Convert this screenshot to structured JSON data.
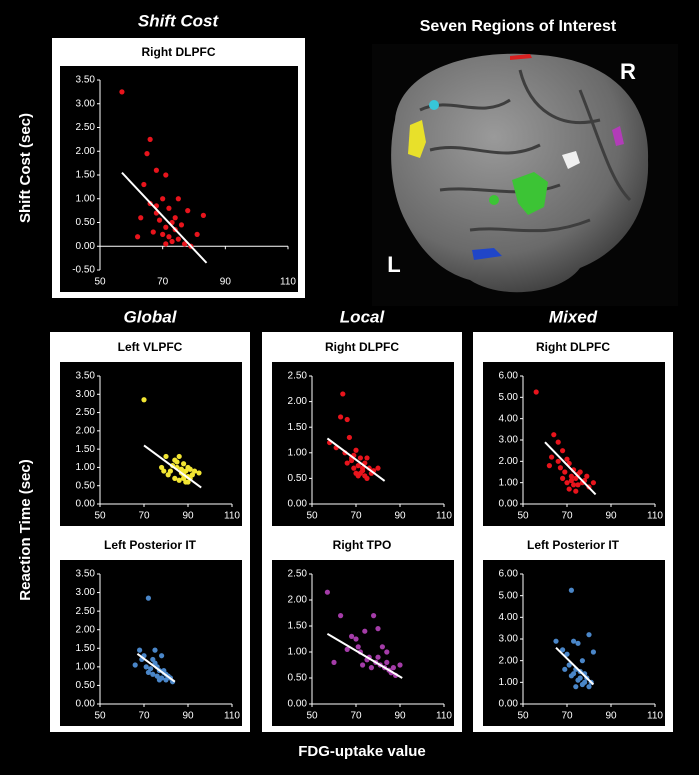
{
  "panel_titles": [
    "Shift Cost",
    "Global",
    "Local",
    "Mixed"
  ],
  "brain": {
    "title": "Seven Regions of Interest",
    "right_label": "R",
    "left_label": "L"
  },
  "y_axis_labels": [
    "Shift Cost (sec)",
    "Reaction Time (sec)"
  ],
  "x_axis_label": "FDG-uptake value",
  "chart_data": [
    {
      "type": "scatter",
      "title": "Right DLPFC",
      "color": "#e8141c",
      "x": [
        57,
        66,
        65,
        68,
        71,
        64,
        70,
        75,
        66,
        68,
        72,
        78,
        83,
        63,
        69,
        73,
        76,
        71,
        74,
        67,
        70,
        72,
        75,
        73,
        77,
        79,
        71,
        62,
        81,
        68,
        74
      ],
      "values": [
        3.25,
        2.25,
        1.95,
        1.6,
        1.5,
        1.3,
        1.0,
        1.0,
        0.9,
        0.85,
        0.8,
        0.75,
        0.65,
        0.6,
        0.55,
        0.5,
        0.45,
        0.4,
        0.35,
        0.3,
        0.25,
        0.2,
        0.15,
        0.1,
        0.05,
        0.0,
        0.05,
        0.2,
        0.25,
        0.7,
        0.6
      ],
      "fit": {
        "x": [
          57,
          84
        ],
        "y": [
          1.55,
          -0.35
        ]
      },
      "xlim": [
        50,
        110
      ],
      "xticks": [
        50,
        70,
        90,
        110
      ],
      "ylim": [
        -0.5,
        3.5
      ],
      "yticks": [
        {
          "value": -0.5,
          "label": "-0.50"
        },
        {
          "value": 0,
          "label": "0.00"
        },
        {
          "value": 0.5,
          "label": "0.50"
        },
        {
          "value": 1,
          "label": "1.00"
        },
        {
          "value": 1.5,
          "label": "1.50"
        },
        {
          "value": 2,
          "label": "2.00"
        },
        {
          "value": 2.5,
          "label": "2.50"
        },
        {
          "value": 3,
          "label": "3.00"
        },
        {
          "value": 3.5,
          "label": "3.50"
        }
      ]
    },
    {
      "type": "scatter",
      "title": "Left VLPFC",
      "color": "#f2e533",
      "x": [
        70,
        78,
        80,
        82,
        84,
        85,
        86,
        87,
        88,
        88,
        89,
        90,
        90,
        91,
        92,
        93,
        84,
        86,
        83,
        87,
        89,
        95,
        81,
        85,
        88,
        91,
        79,
        90
      ],
      "values": [
        2.85,
        1.0,
        1.3,
        0.9,
        1.2,
        1.0,
        1.3,
        0.85,
        0.8,
        1.1,
        0.9,
        0.75,
        1.0,
        0.7,
        0.8,
        0.9,
        0.7,
        0.65,
        1.05,
        0.95,
        0.6,
        0.85,
        0.8,
        1.15,
        0.7,
        0.95,
        0.9,
        0.6
      ],
      "fit": {
        "x": [
          70,
          96
        ],
        "y": [
          1.6,
          0.45
        ]
      },
      "xlim": [
        50,
        110
      ],
      "xticks": [
        50,
        70,
        90,
        110
      ],
      "ylim": [
        0,
        3.5
      ],
      "yticks": [
        {
          "value": 0,
          "label": "0.00"
        },
        {
          "value": 0.5,
          "label": "0.50"
        },
        {
          "value": 1,
          "label": "1.00"
        },
        {
          "value": 1.5,
          "label": "1.50"
        },
        {
          "value": 2,
          "label": "2.00"
        },
        {
          "value": 2.5,
          "label": "2.50"
        },
        {
          "value": 3,
          "label": "3.00"
        },
        {
          "value": 3.5,
          "label": "3.50"
        }
      ]
    },
    {
      "type": "scatter",
      "title": "Right DLPFC",
      "color": "#e8141c",
      "x": [
        64,
        63,
        66,
        58,
        61,
        67,
        65,
        69,
        70,
        72,
        68,
        74,
        75,
        71,
        73,
        76,
        78,
        70,
        66,
        72,
        74,
        77,
        80,
        69,
        71,
        73,
        75,
        68
      ],
      "values": [
        2.15,
        1.7,
        1.65,
        1.2,
        1.1,
        1.3,
        1.0,
        0.95,
        1.05,
        0.9,
        0.85,
        0.8,
        0.9,
        0.75,
        0.7,
        0.7,
        0.65,
        0.6,
        0.8,
        0.6,
        0.55,
        0.6,
        0.7,
        0.7,
        0.55,
        0.65,
        0.5,
        0.9
      ],
      "fit": {
        "x": [
          57,
          83
        ],
        "y": [
          1.28,
          0.45
        ]
      },
      "xlim": [
        50,
        110
      ],
      "xticks": [
        50,
        70,
        90,
        110
      ],
      "ylim": [
        0,
        2.5
      ],
      "yticks": [
        {
          "value": 0,
          "label": "0.00"
        },
        {
          "value": 0.5,
          "label": "0.50"
        },
        {
          "value": 1,
          "label": "1.00"
        },
        {
          "value": 1.5,
          "label": "1.50"
        },
        {
          "value": 2,
          "label": "2.00"
        },
        {
          "value": 2.5,
          "label": "2.50"
        }
      ]
    },
    {
      "type": "scatter",
      "title": "Right DLPFC",
      "color": "#e8141c",
      "x": [
        56,
        64,
        66,
        63,
        68,
        70,
        62,
        67,
        71,
        73,
        69,
        75,
        72,
        74,
        76,
        78,
        70,
        73,
        77,
        80,
        68,
        71,
        75,
        79,
        74,
        82,
        66,
        72
      ],
      "values": [
        5.25,
        3.25,
        2.9,
        2.2,
        2.5,
        2.1,
        1.8,
        1.7,
        1.9,
        1.6,
        1.5,
        1.4,
        1.3,
        1.2,
        1.5,
        1.1,
        1.0,
        0.9,
        1.0,
        0.8,
        1.2,
        0.7,
        0.9,
        1.3,
        0.6,
        1.0,
        2.0,
        1.1
      ],
      "fit": {
        "x": [
          60,
          83
        ],
        "y": [
          2.9,
          0.45
        ]
      },
      "xlim": [
        50,
        110
      ],
      "xticks": [
        50,
        70,
        90,
        110
      ],
      "ylim": [
        0,
        6
      ],
      "yticks": [
        {
          "value": 0,
          "label": "0.00"
        },
        {
          "value": 1,
          "label": "1.00"
        },
        {
          "value": 2,
          "label": "2.00"
        },
        {
          "value": 3,
          "label": "3.00"
        },
        {
          "value": 4,
          "label": "4.00"
        },
        {
          "value": 5,
          "label": "5.00"
        },
        {
          "value": 6,
          "label": "6.00"
        }
      ]
    },
    {
      "type": "scatter",
      "title": "Left Posterior IT",
      "color": "#4a86c8",
      "x": [
        72,
        66,
        68,
        70,
        75,
        74,
        76,
        78,
        73,
        77,
        79,
        80,
        81,
        82,
        71,
        74,
        76,
        78,
        80,
        83,
        75,
        77,
        79,
        69,
        72
      ],
      "values": [
        2.85,
        1.05,
        1.45,
        1.3,
        1.45,
        1.2,
        1.0,
        1.3,
        0.95,
        0.9,
        0.85,
        0.8,
        0.75,
        0.7,
        1.0,
        0.8,
        0.75,
        0.7,
        0.65,
        0.6,
        1.1,
        0.65,
        0.9,
        1.2,
        0.85
      ],
      "fit": {
        "x": [
          67,
          84
        ],
        "y": [
          1.35,
          0.6
        ]
      },
      "xlim": [
        50,
        110
      ],
      "xticks": [
        50,
        70,
        90,
        110
      ],
      "ylim": [
        0,
        3.5
      ],
      "yticks": [
        {
          "value": 0,
          "label": "0.00"
        },
        {
          "value": 0.5,
          "label": "0.50"
        },
        {
          "value": 1,
          "label": "1.00"
        },
        {
          "value": 1.5,
          "label": "1.50"
        },
        {
          "value": 2,
          "label": "2.00"
        },
        {
          "value": 2.5,
          "label": "2.50"
        },
        {
          "value": 3,
          "label": "3.00"
        },
        {
          "value": 3.5,
          "label": "3.50"
        }
      ]
    },
    {
      "type": "scatter",
      "title": "Right TPO",
      "color": "#a43ca8",
      "x": [
        57,
        63,
        60,
        68,
        70,
        72,
        74,
        78,
        80,
        82,
        84,
        76,
        79,
        81,
        83,
        85,
        87,
        90,
        75,
        71,
        77,
        86,
        88,
        66,
        73,
        80,
        84
      ],
      "values": [
        2.15,
        1.7,
        0.8,
        1.3,
        1.25,
        1.0,
        1.4,
        1.7,
        1.45,
        1.1,
        1.0,
        0.9,
        0.8,
        0.75,
        0.7,
        0.65,
        0.7,
        0.75,
        0.85,
        1.1,
        0.7,
        0.6,
        0.55,
        1.05,
        0.75,
        0.9,
        0.8
      ],
      "fit": {
        "x": [
          57,
          91
        ],
        "y": [
          1.35,
          0.5
        ]
      },
      "xlim": [
        50,
        110
      ],
      "xticks": [
        50,
        70,
        90,
        110
      ],
      "ylim": [
        0,
        2.5
      ],
      "yticks": [
        {
          "value": 0,
          "label": "0.00"
        },
        {
          "value": 0.5,
          "label": "0.50"
        },
        {
          "value": 1,
          "label": "1.00"
        },
        {
          "value": 1.5,
          "label": "1.50"
        },
        {
          "value": 2,
          "label": "2.00"
        },
        {
          "value": 2.5,
          "label": "2.50"
        }
      ]
    },
    {
      "type": "scatter",
      "title": "Left Posterior IT",
      "color": "#4a86c8",
      "x": [
        72,
        65,
        68,
        70,
        73,
        75,
        77,
        80,
        82,
        71,
        74,
        76,
        78,
        79,
        81,
        69,
        72,
        75,
        77,
        80,
        73,
        76,
        78,
        74
      ],
      "values": [
        5.25,
        2.9,
        2.5,
        2.3,
        2.9,
        2.8,
        2.0,
        3.2,
        2.4,
        1.8,
        1.6,
        1.5,
        1.4,
        1.2,
        1.0,
        1.6,
        1.3,
        1.1,
        0.9,
        0.8,
        1.4,
        1.2,
        1.0,
        0.8
      ],
      "fit": {
        "x": [
          65,
          82
        ],
        "y": [
          2.6,
          0.9
        ]
      },
      "xlim": [
        50,
        110
      ],
      "xticks": [
        50,
        70,
        90,
        110
      ],
      "ylim": [
        0,
        6
      ],
      "yticks": [
        {
          "value": 0,
          "label": "0.00"
        },
        {
          "value": 1,
          "label": "1.00"
        },
        {
          "value": 2,
          "label": "2.00"
        },
        {
          "value": 3,
          "label": "3.00"
        },
        {
          "value": 4,
          "label": "4.00"
        },
        {
          "value": 5,
          "label": "5.00"
        },
        {
          "value": 6,
          "label": "6.00"
        }
      ]
    }
  ]
}
